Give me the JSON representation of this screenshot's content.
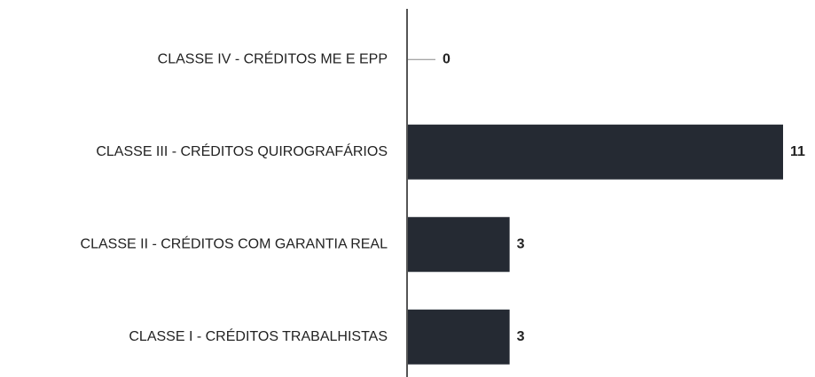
{
  "chart_data": {
    "type": "bar",
    "orientation": "horizontal",
    "categories": [
      "CLASSE IV - CRÉDITOS ME E EPP",
      "CLASSE III - CRÉDITOS QUIROGRAFÁRIOS",
      "CLASSE II - CRÉDITOS COM GARANTIA REAL",
      "CLASSE I - CRÉDITOS TRABALHISTAS"
    ],
    "values": [
      0,
      11,
      3,
      3
    ],
    "color": "#252a33",
    "xlim": [
      0,
      11
    ]
  }
}
